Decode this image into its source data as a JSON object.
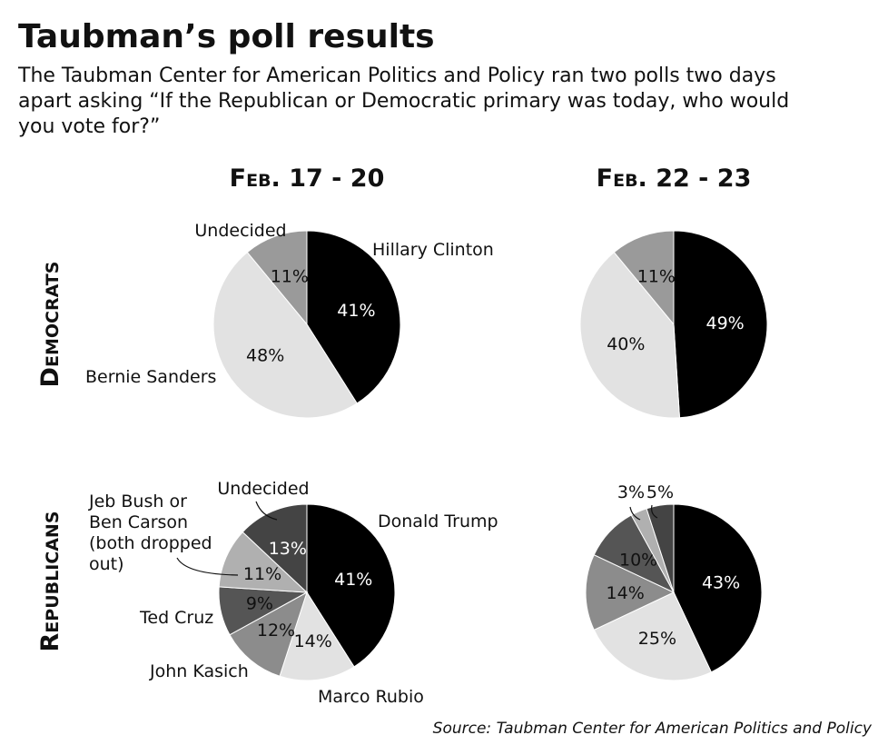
{
  "title": "Taubman’s poll results",
  "subtitle_lines": [
    "The Taubman Center for American Politics and Policy ran two polls two days",
    "apart asking “If the Republican or Democratic primary was today, who would",
    "you vote for?”"
  ],
  "source": "Source: Taubman Center for American Politics and Policy",
  "columns": [
    "Feb. 17 - 20",
    "Feb. 22 - 23"
  ],
  "rows": [
    "Democrats",
    "Republicans"
  ],
  "chart_data": [
    {
      "type": "pie",
      "group": "Democrats",
      "period": "Feb. 17 - 20",
      "categories": [
        "Hillary Clinton",
        "Bernie Sanders",
        "Undecided"
      ],
      "values": [
        41,
        48,
        11
      ],
      "labels": [
        "41%",
        "48%",
        "11%"
      ],
      "colors": [
        "#000000",
        "#e2e2e2",
        "#9a9a9a"
      ]
    },
    {
      "type": "pie",
      "group": "Democrats",
      "period": "Feb. 22 - 23",
      "categories": [
        "Hillary Clinton",
        "Bernie Sanders",
        "Undecided"
      ],
      "values": [
        49,
        40,
        11
      ],
      "labels": [
        "49%",
        "40%",
        "11%"
      ],
      "colors": [
        "#000000",
        "#e2e2e2",
        "#9a9a9a"
      ]
    },
    {
      "type": "pie",
      "group": "Republicans",
      "period": "Feb. 17 - 20",
      "categories": [
        "Donald Trump",
        "Marco Rubio",
        "John Kasich",
        "Ted Cruz",
        "Jeb Bush or Ben Carson (both dropped out)",
        "Undecided"
      ],
      "values": [
        41,
        14,
        12,
        9,
        11,
        13
      ],
      "labels": [
        "41%",
        "14%",
        "12%",
        "9%",
        "11%",
        "13%"
      ],
      "colors": [
        "#000000",
        "#e2e2e2",
        "#8c8c8c",
        "#555555",
        "#b0b0b0",
        "#444444"
      ]
    },
    {
      "type": "pie",
      "group": "Republicans",
      "period": "Feb. 22 - 23",
      "categories": [
        "Donald Trump",
        "Marco Rubio",
        "John Kasich",
        "Ted Cruz",
        "Jeb Bush or Ben Carson (both dropped out)",
        "Undecided"
      ],
      "values": [
        43,
        25,
        14,
        10,
        3,
        5
      ],
      "labels": [
        "43%",
        "25%",
        "14%",
        "10%",
        "3%",
        "5%"
      ],
      "colors": [
        "#000000",
        "#e2e2e2",
        "#8c8c8c",
        "#555555",
        "#b0b0b0",
        "#444444"
      ]
    }
  ],
  "callouts": {
    "dem_undecided": "Undecided",
    "dem_clinton": "Hillary Clinton",
    "dem_sanders": "Bernie Sanders",
    "rep_undecided": "Undecided",
    "rep_bush_lines": [
      "Jeb Bush or",
      "Ben Carson",
      "(both dropped",
      "out)"
    ],
    "rep_trump": "Donald Trump",
    "rep_cruz": "Ted Cruz",
    "rep_kasich": "John Kasich",
    "rep_rubio": "Marco Rubio"
  }
}
